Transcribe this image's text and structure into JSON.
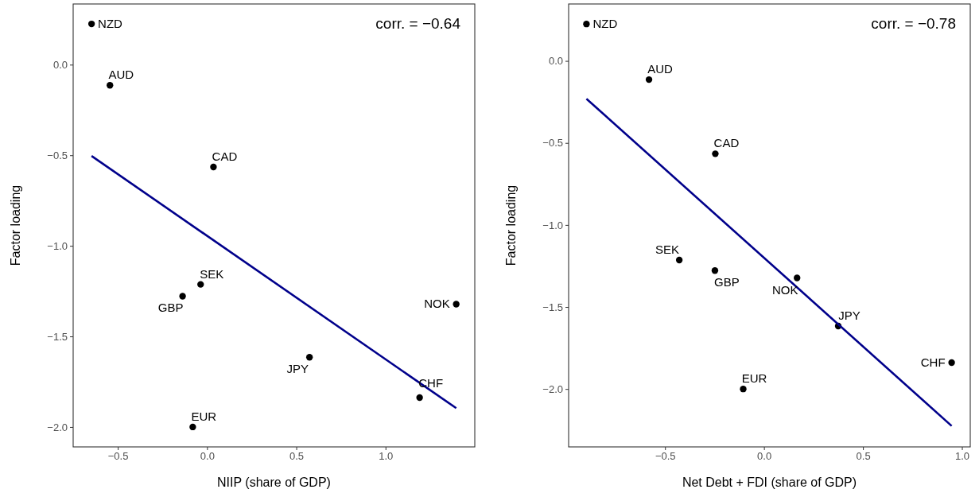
{
  "chart_data": [
    {
      "type": "scatter",
      "xlabel": "NIIP (share of GDP)",
      "ylabel": "Factor loading",
      "xlim": [
        -0.75,
        1.5
      ],
      "ylim": [
        -2.11,
        0.335
      ],
      "xticks": [
        {
          "value": -0.5,
          "label": "−0.5"
        },
        {
          "value": 0,
          "label": "0.0"
        },
        {
          "value": 0.5,
          "label": "0.5"
        },
        {
          "value": 1,
          "label": "1.0"
        }
      ],
      "yticks": [
        {
          "value": 0,
          "label": "0.0"
        },
        {
          "value": -0.5,
          "label": "−0.5"
        },
        {
          "value": -1,
          "label": "−1.0"
        },
        {
          "value": -1.5,
          "label": "−1.5"
        },
        {
          "value": -2,
          "label": "−2.0"
        }
      ],
      "grid": false,
      "marker": "circle",
      "series": [
        {
          "color": "#000000",
          "x": [
            -0.647,
            -0.544,
            0.036,
            -0.036,
            -0.137,
            1.396,
            0.574,
            1.191,
            -0.08
          ],
          "values": [
            0.225,
            -0.114,
            -0.565,
            -1.213,
            -1.278,
            -1.322,
            -1.615,
            -1.838,
            -2.0
          ]
        },
        {
          "type": "line",
          "color": "#00008b",
          "x": [
            -0.647,
            1.396
          ],
          "values": [
            -0.504,
            -1.896
          ],
          "marker": "none",
          "line_style": "solid"
        }
      ],
      "annotations": [
        "corr. = −0.64",
        {
          "text": "NZD",
          "x": -0.647,
          "y": 0.225
        },
        {
          "text": "AUD",
          "x": -0.544,
          "y": -0.114
        },
        {
          "text": "CAD",
          "x": 0.036,
          "y": -0.565
        },
        {
          "text": "SEK",
          "x": -0.036,
          "y": -1.213
        },
        {
          "text": "GBP",
          "x": -0.137,
          "y": -1.278
        },
        {
          "text": "NOK",
          "x": 1.396,
          "y": -1.322
        },
        {
          "text": "JPY",
          "x": 0.574,
          "y": -1.615
        },
        {
          "text": "CHF",
          "x": 1.191,
          "y": -1.838
        },
        {
          "text": "EUR",
          "x": -0.08,
          "y": -2.0
        }
      ]
    },
    {
      "type": "scatter",
      "xlabel": "Net Debt + FDI (share of GDP)",
      "ylabel": "Factor loading",
      "xlim": [
        -0.987,
        1.042
      ],
      "ylim": [
        -2.353,
        0.347
      ],
      "xticks": [
        {
          "value": -0.5,
          "label": "−0.5"
        },
        {
          "value": 0,
          "label": "0.0"
        },
        {
          "value": 0.5,
          "label": "0.5"
        },
        {
          "value": 1,
          "label": "1.0"
        }
      ],
      "yticks": [
        {
          "value": 0,
          "label": "0.0"
        },
        {
          "value": -0.5,
          "label": "−0.5"
        },
        {
          "value": -1,
          "label": "−1.0"
        },
        {
          "value": -1.5,
          "label": "−1.5"
        },
        {
          "value": -2,
          "label": "−2.0"
        }
      ],
      "grid": false,
      "marker": "circle",
      "series": [
        {
          "color": "#000000",
          "x": [
            -0.897,
            -0.581,
            -0.246,
            -0.428,
            -0.248,
            0.167,
            0.375,
            0.948,
            -0.105
          ],
          "values": [
            0.225,
            -0.114,
            -0.566,
            -1.214,
            -1.278,
            -1.323,
            -1.616,
            -1.839,
            -2.0
          ]
        },
        {
          "type": "line",
          "color": "#00008b",
          "x": [
            -0.897,
            0.948
          ],
          "values": [
            -0.231,
            -2.225
          ],
          "marker": "none",
          "line_style": "solid"
        }
      ],
      "annotations": [
        "corr. = −0.78",
        {
          "text": "NZD",
          "x": -0.897,
          "y": 0.225
        },
        {
          "text": "AUD",
          "x": -0.581,
          "y": -0.114
        },
        {
          "text": "CAD",
          "x": -0.246,
          "y": -0.566
        },
        {
          "text": "SEK",
          "x": -0.428,
          "y": -1.214
        },
        {
          "text": "GBP",
          "x": -0.248,
          "y": -1.278
        },
        {
          "text": "NOK",
          "x": 0.167,
          "y": -1.323
        },
        {
          "text": "JPY",
          "x": 0.375,
          "y": -1.616
        },
        {
          "text": "CHF",
          "x": 0.948,
          "y": -1.839
        },
        {
          "text": "EUR",
          "x": -0.105,
          "y": -2.0
        }
      ]
    }
  ]
}
